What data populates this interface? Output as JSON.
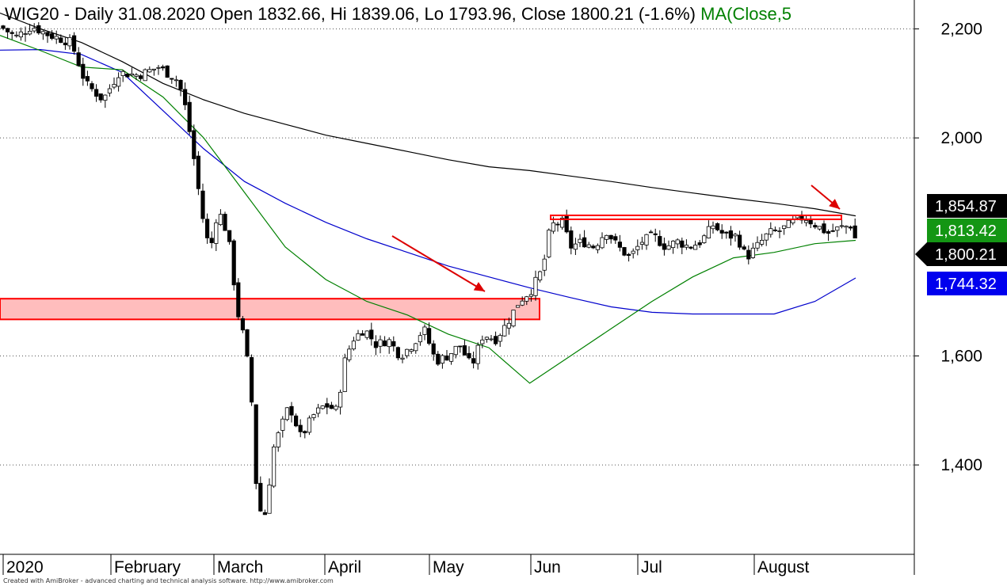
{
  "title": {
    "prefix": "WIG20 - Daily 31.08.2020 Open 1832.66, Hi 1839.06, Lo 1793.96, Close 1800.21 (-1.6%) ",
    "ma": "MA(Close,5"
  },
  "colors": {
    "ma_short": "#008000",
    "ma_mid": "#0000cc",
    "ma_long": "#000000",
    "resistance": "#ff0000",
    "support_zone_fill": "#ffbdbd",
    "arrow": "#dd0000",
    "tag_long": "#000000",
    "tag_short": "#149614",
    "tag_close": "#000000",
    "tag_mid": "#0000ee"
  },
  "chart_data": {
    "type": "candlestick",
    "x_labels": [
      "2020",
      "February",
      "March",
      "April",
      "May",
      "Jun",
      "Jul",
      "August"
    ],
    "y_ticks": [
      "1,400",
      "1,600",
      "2,000",
      "2,200"
    ],
    "ylim": [
      1236,
      2253
    ],
    "grid": "dotted",
    "price_tags": {
      "long_ma": "1,854.87",
      "short_ma": "1,813.42",
      "close": "1,800.21",
      "mid_ma": "1,744.32"
    },
    "series_ma_long": [
      2229,
      2200,
      2175,
      2140,
      2100,
      2070,
      2045,
      2025,
      2005,
      1990,
      1975,
      1960,
      1947,
      1940,
      1930,
      1920,
      1909,
      1899,
      1889,
      1880,
      1870,
      1857
    ],
    "series_ma_mid": [
      2161,
      2162,
      2153,
      2120,
      2050,
      1980,
      1920,
      1880,
      1845,
      1815,
      1790,
      1765,
      1745,
      1725,
      1707,
      1690,
      1680,
      1677,
      1677,
      1677,
      1700,
      1743
    ],
    "series_ma_short": [
      2188,
      2160,
      2130,
      2125,
      2075,
      2000,
      1900,
      1800,
      1740,
      1700,
      1675,
      1640,
      1615,
      1550,
      1600,
      1650,
      1700,
      1745,
      1780,
      1790,
      1806,
      1812
    ],
    "resistance_level": 1855,
    "support_zone": [
      1667,
      1705
    ],
    "annotations": [
      "red arrow pointing at support breakout",
      "red arrow pointing at resistance / long MA"
    ]
  },
  "credit": "Created with AmiBroker - advanced charting and technical analysis software. http://www.amibroker.com"
}
